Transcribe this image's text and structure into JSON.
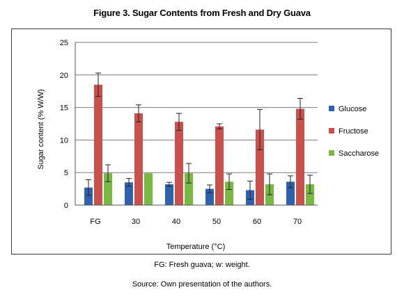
{
  "figure": {
    "title": "Figure 3. Sugar Contents from Fresh and Dry Guava",
    "caption": "FG: Fresh guava; w: weight.",
    "source": "Source: Own presentation of the authors."
  },
  "chart_data": {
    "type": "bar",
    "title": "",
    "xlabel": "Temperature (°C)",
    "ylabel": "Sugar content (% W/W)",
    "ylim": [
      0,
      25
    ],
    "yticks": [
      0,
      5,
      10,
      15,
      20,
      25
    ],
    "grid": true,
    "legend_position": "right",
    "categories": [
      "FG",
      "30",
      "40",
      "50",
      "60",
      "70"
    ],
    "series": [
      {
        "name": "Glucose",
        "color": "#2e62b0",
        "values": [
          2.7,
          3.5,
          3.2,
          2.5,
          2.3,
          3.6
        ],
        "errors": [
          1.2,
          0.6,
          0.3,
          0.6,
          1.4,
          0.9
        ]
      },
      {
        "name": "Fructose",
        "color": "#c9504b",
        "values": [
          18.5,
          14.1,
          12.8,
          12.1,
          11.6,
          14.8
        ],
        "errors": [
          1.8,
          1.3,
          1.3,
          0.4,
          3.1,
          1.6
        ]
      },
      {
        "name": "Saccharose",
        "color": "#78b944",
        "values": [
          4.9,
          4.9,
          4.9,
          3.6,
          3.2,
          3.2
        ],
        "errors": [
          1.3,
          0.0,
          1.5,
          1.2,
          1.6,
          1.4
        ]
      }
    ]
  }
}
